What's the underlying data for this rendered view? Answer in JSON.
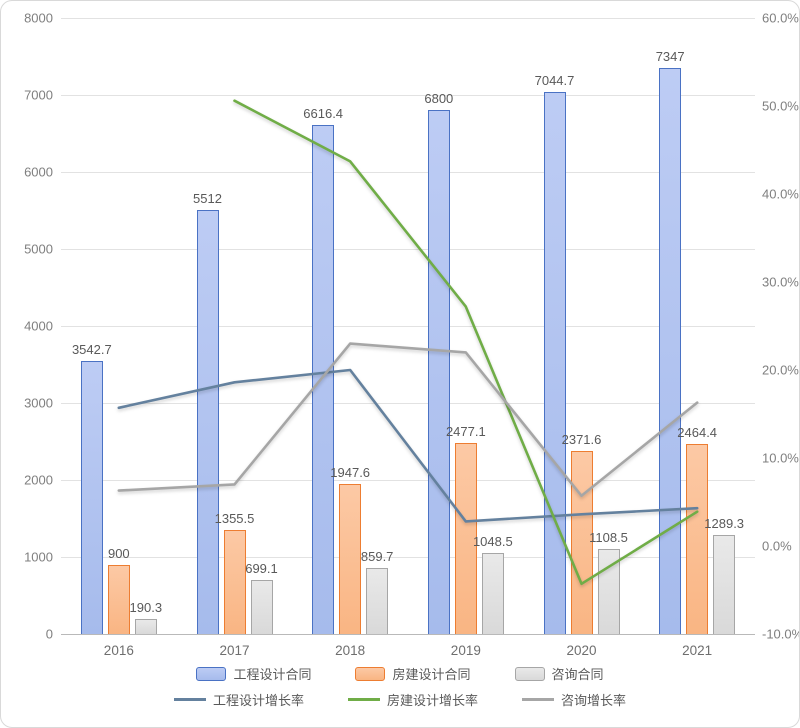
{
  "chart_data": {
    "type": "bar",
    "subtype": "combo-bar-line-dual-axis",
    "categories": [
      "2016",
      "2017",
      "2018",
      "2019",
      "2020",
      "2021"
    ],
    "bar_series": [
      {
        "name": "工程设计合同",
        "values": [
          3542.7,
          5512,
          6616.4,
          6800,
          7044.7,
          7347
        ],
        "labels": [
          "3542.7",
          "5512",
          "6616.4",
          "6800",
          "7044.7",
          "7347"
        ],
        "fill_top": "#bdccf4",
        "fill_bottom": "#a6bbec",
        "border": "#4a72c4"
      },
      {
        "name": "房建设计合同",
        "values": [
          900,
          1355.5,
          1947.6,
          2477.1,
          2371.6,
          2464.4
        ],
        "labels": [
          "900",
          "1355.5",
          "1947.6",
          "2477.1",
          "2371.6",
          "2464.4"
        ],
        "fill_top": "#fcc9a5",
        "fill_bottom": "#f9b583",
        "border": "#ed7d31"
      },
      {
        "name": "咨询合同",
        "values": [
          190.3,
          699.1,
          859.7,
          1048.5,
          1108.5,
          1289.3
        ],
        "labels": [
          "190.3",
          "699.1",
          "859.7",
          "1048.5",
          "1108.5",
          "1289.3"
        ],
        "fill_top": "#e9e9e9",
        "fill_bottom": "#d9d9d9",
        "border": "#a6a6a6"
      }
    ],
    "line_series": [
      {
        "name": "工程设计增长率",
        "values": [
          15.7,
          18.6,
          20.0,
          2.8,
          3.6,
          4.3
        ],
        "color": "#64819e"
      },
      {
        "name": "房建设计增长率",
        "values": [
          null,
          50.6,
          43.7,
          27.2,
          -4.3,
          3.9
        ],
        "color": "#70ad47"
      },
      {
        "name": "咨询增长率",
        "values": [
          6.3,
          7.0,
          23.0,
          22.0,
          5.7,
          16.3
        ],
        "color": "#a6a6a6"
      }
    ],
    "left_axis": {
      "min": 0,
      "max": 8000,
      "step": 1000,
      "labels": [
        "0",
        "1000",
        "2000",
        "3000",
        "4000",
        "5000",
        "6000",
        "7000",
        "8000"
      ]
    },
    "right_axis": {
      "min": -10,
      "max": 60,
      "step": 10,
      "labels": [
        "-10.0%",
        "0.0%",
        "10.0%",
        "20.0%",
        "30.0%",
        "40.0%",
        "50.0%",
        "60.0%"
      ]
    },
    "grid": true,
    "legend_position": "bottom",
    "title": "",
    "xlabel": "",
    "ylabel": ""
  },
  "colors": {
    "gridline": "#e2e2e2",
    "axis_line": "#b9b9b9",
    "axis_text": "#7f7f7f",
    "label_text": "#595959",
    "background": "#ffffff",
    "frame_border": "#d9d9d9"
  }
}
